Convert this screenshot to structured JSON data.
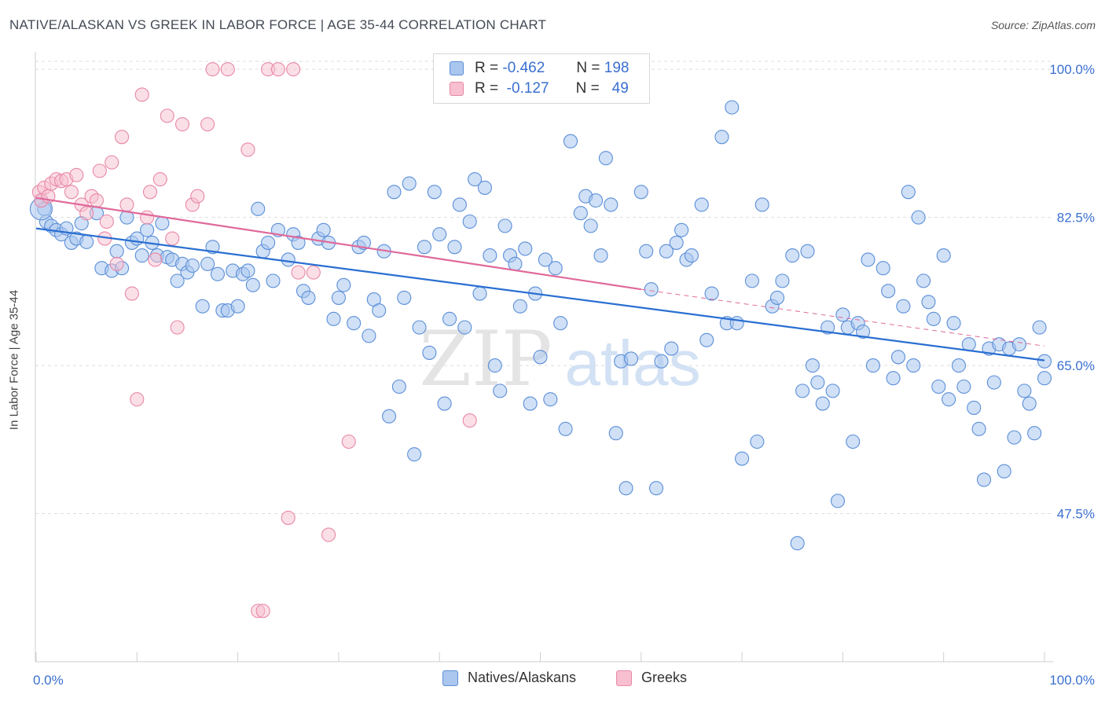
{
  "title": "NATIVE/ALASKAN VS GREEK IN LABOR FORCE | AGE 35-44 CORRELATION CHART",
  "source": "Source: ZipAtlas.com",
  "watermark": {
    "zip": "ZIP",
    "atlas": "atlas"
  },
  "colors": {
    "blue_fill": "#aac6ee",
    "blue_stroke": "#5b8fd8",
    "blue_line": "#2a6fd1",
    "pink_fill": "#f7bfd0",
    "pink_stroke": "#e888a7",
    "pink_line": "#e0699a",
    "axis_text": "#3a6fd0",
    "grid": "#dddddd"
  },
  "legend": {
    "r_label": "R =",
    "n_label": "N =",
    "series": [
      {
        "name": "Natives/Alaskans",
        "r": "-0.462",
        "n": "198"
      },
      {
        "name": "Greeks",
        "r": "-0.127",
        "n": "49"
      }
    ]
  },
  "chart_data": {
    "type": "scatter",
    "title": "NATIVE/ALASKAN VS GREEK IN LABOR FORCE | AGE 35-44 CORRELATION CHART",
    "xlabel": "",
    "ylabel": "In Labor Force | Age 35-44",
    "xlim": [
      0,
      100
    ],
    "ylim": [
      30,
      101.5
    ],
    "x_tick_labels": [
      "0.0%",
      "100.0%"
    ],
    "y_ticks": [
      47.5,
      65.0,
      82.5,
      100.0
    ],
    "y_tick_labels": [
      "47.5%",
      "65.0%",
      "82.5%",
      "100.0%"
    ],
    "grid": true,
    "legend_position": "top-center",
    "series": [
      {
        "name": "Natives/Alaskans",
        "trend": {
          "x0": 0,
          "y0": 81.2,
          "x1": 100,
          "y1": 65.6
        },
        "points": [
          [
            0.5,
            84.5
          ],
          [
            0.8,
            83.5
          ],
          [
            1.0,
            82.0
          ],
          [
            1.5,
            81.5
          ],
          [
            2.0,
            81.0
          ],
          [
            2.5,
            80.5
          ],
          [
            3.0,
            81.2
          ],
          [
            3.5,
            79.5
          ],
          [
            4.0,
            80.0
          ],
          [
            4.5,
            81.8
          ],
          [
            5.0,
            79.6
          ],
          [
            6.0,
            83.0
          ],
          [
            6.5,
            76.5
          ],
          [
            7.5,
            76.2
          ],
          [
            8.0,
            78.5
          ],
          [
            8.5,
            76.5
          ],
          [
            9.0,
            82.5
          ],
          [
            9.5,
            79.5
          ],
          [
            10.0,
            80.0
          ],
          [
            10.5,
            78.0
          ],
          [
            11.0,
            81.0
          ],
          [
            11.5,
            79.5
          ],
          [
            12.0,
            78.0
          ],
          [
            12.5,
            81.8
          ],
          [
            13.0,
            77.8
          ],
          [
            13.5,
            77.5
          ],
          [
            14.0,
            75.0
          ],
          [
            14.5,
            77.0
          ],
          [
            15.0,
            76.0
          ],
          [
            15.5,
            76.8
          ],
          [
            16.5,
            72.0
          ],
          [
            17.0,
            77.0
          ],
          [
            17.5,
            79.0
          ],
          [
            18.0,
            75.8
          ],
          [
            18.5,
            71.5
          ],
          [
            19.0,
            71.5
          ],
          [
            19.5,
            76.2
          ],
          [
            20.0,
            72.0
          ],
          [
            20.5,
            75.8
          ],
          [
            21.0,
            76.2
          ],
          [
            21.5,
            74.5
          ],
          [
            22.0,
            83.5
          ],
          [
            22.5,
            78.5
          ],
          [
            23.0,
            79.5
          ],
          [
            23.5,
            75.0
          ],
          [
            24.0,
            81.0
          ],
          [
            25.0,
            77.5
          ],
          [
            25.5,
            80.5
          ],
          [
            26.0,
            79.5
          ],
          [
            26.5,
            73.8
          ],
          [
            27.0,
            73.0
          ],
          [
            28.0,
            80.0
          ],
          [
            28.5,
            81.0
          ],
          [
            29.0,
            79.5
          ],
          [
            29.5,
            70.5
          ],
          [
            30.0,
            73.0
          ],
          [
            30.5,
            74.5
          ],
          [
            31.5,
            70.0
          ],
          [
            32.0,
            79.0
          ],
          [
            32.5,
            79.5
          ],
          [
            33.0,
            68.5
          ],
          [
            33.5,
            72.8
          ],
          [
            34.0,
            71.5
          ],
          [
            34.5,
            78.5
          ],
          [
            35.0,
            59.0
          ],
          [
            35.5,
            85.5
          ],
          [
            36.0,
            62.5
          ],
          [
            36.5,
            73.0
          ],
          [
            37.0,
            86.5
          ],
          [
            37.5,
            54.5
          ],
          [
            38.0,
            69.5
          ],
          [
            38.5,
            79.0
          ],
          [
            39.0,
            66.5
          ],
          [
            39.5,
            85.5
          ],
          [
            40.0,
            80.5
          ],
          [
            40.5,
            60.5
          ],
          [
            41.0,
            70.5
          ],
          [
            41.5,
            79.0
          ],
          [
            42.0,
            84.0
          ],
          [
            42.5,
            69.5
          ],
          [
            43.0,
            82.0
          ],
          [
            43.5,
            87.0
          ],
          [
            44.0,
            73.5
          ],
          [
            44.5,
            86.0
          ],
          [
            45.0,
            78.0
          ],
          [
            45.5,
            65.0
          ],
          [
            46.0,
            62.0
          ],
          [
            46.5,
            81.5
          ],
          [
            47.0,
            78.0
          ],
          [
            47.5,
            77.0
          ],
          [
            48.0,
            72.0
          ],
          [
            48.5,
            78.8
          ],
          [
            49.0,
            60.5
          ],
          [
            49.5,
            73.5
          ],
          [
            50.0,
            66.0
          ],
          [
            50.5,
            77.5
          ],
          [
            51.0,
            61.0
          ],
          [
            51.5,
            76.5
          ],
          [
            52.0,
            70.0
          ],
          [
            52.5,
            57.5
          ],
          [
            53.0,
            91.5
          ],
          [
            54.0,
            83.0
          ],
          [
            54.5,
            85.0
          ],
          [
            55.0,
            81.5
          ],
          [
            55.5,
            84.5
          ],
          [
            56.0,
            78.0
          ],
          [
            56.5,
            89.5
          ],
          [
            57.0,
            84.0
          ],
          [
            57.5,
            57.0
          ],
          [
            58.0,
            65.5
          ],
          [
            58.5,
            50.5
          ],
          [
            59.0,
            65.8
          ],
          [
            60.0,
            85.5
          ],
          [
            60.5,
            78.5
          ],
          [
            61.0,
            74.0
          ],
          [
            61.5,
            50.5
          ],
          [
            62.0,
            65.5
          ],
          [
            62.5,
            78.5
          ],
          [
            63.0,
            67.0
          ],
          [
            63.5,
            79.5
          ],
          [
            64.0,
            81.0
          ],
          [
            64.5,
            77.5
          ],
          [
            65.0,
            78.0
          ],
          [
            66.0,
            84.0
          ],
          [
            66.5,
            68.0
          ],
          [
            67.0,
            73.5
          ],
          [
            68.0,
            92.0
          ],
          [
            68.5,
            70.0
          ],
          [
            69.0,
            95.5
          ],
          [
            69.5,
            70.0
          ],
          [
            70.0,
            54.0
          ],
          [
            71.0,
            75.0
          ],
          [
            71.5,
            56.0
          ],
          [
            72.0,
            84.0
          ],
          [
            73.0,
            72.0
          ],
          [
            73.5,
            73.0
          ],
          [
            74.0,
            75.0
          ],
          [
            75.0,
            78.0
          ],
          [
            75.5,
            44.0
          ],
          [
            76.0,
            62.0
          ],
          [
            76.5,
            78.5
          ],
          [
            77.0,
            65.0
          ],
          [
            77.5,
            63.0
          ],
          [
            78.0,
            60.5
          ],
          [
            78.5,
            69.5
          ],
          [
            79.0,
            62.0
          ],
          [
            79.5,
            49.0
          ],
          [
            80.0,
            71.0
          ],
          [
            80.5,
            69.5
          ],
          [
            81.0,
            56.0
          ],
          [
            81.5,
            70.0
          ],
          [
            82.0,
            69.0
          ],
          [
            82.5,
            77.5
          ],
          [
            83.0,
            65.0
          ],
          [
            84.0,
            76.5
          ],
          [
            84.5,
            73.8
          ],
          [
            85.0,
            63.5
          ],
          [
            85.5,
            66.0
          ],
          [
            86.0,
            72.0
          ],
          [
            86.5,
            85.5
          ],
          [
            87.0,
            65.0
          ],
          [
            87.5,
            82.5
          ],
          [
            88.0,
            75.0
          ],
          [
            88.5,
            72.5
          ],
          [
            89.0,
            70.5
          ],
          [
            89.5,
            62.5
          ],
          [
            90.0,
            78.0
          ],
          [
            90.5,
            61.0
          ],
          [
            91.0,
            70.0
          ],
          [
            91.5,
            65.0
          ],
          [
            92.0,
            62.5
          ],
          [
            92.5,
            67.5
          ],
          [
            93.0,
            60.0
          ],
          [
            93.5,
            57.5
          ],
          [
            94.0,
            51.5
          ],
          [
            94.5,
            67.0
          ],
          [
            95.0,
            63.0
          ],
          [
            95.5,
            67.5
          ],
          [
            96.0,
            52.5
          ],
          [
            96.5,
            67.0
          ],
          [
            97.0,
            56.5
          ],
          [
            97.5,
            67.5
          ],
          [
            98.0,
            62.0
          ],
          [
            98.5,
            60.5
          ],
          [
            99.0,
            57.0
          ],
          [
            99.5,
            69.5
          ],
          [
            100.0,
            63.5
          ],
          [
            100.0,
            65.5
          ],
          [
            60.0,
            100.0
          ],
          [
            59.5,
            100.0
          ]
        ]
      },
      {
        "name": "Greeks",
        "trend": {
          "x0": 0,
          "y0": 84.8,
          "x1": 60,
          "y1": 74.0
        },
        "trend_dashed": {
          "x0": 60,
          "y0": 74.0,
          "x1": 100,
          "y1": 67.3
        },
        "points": [
          [
            0.3,
            85.5
          ],
          [
            0.5,
            84.5
          ],
          [
            0.8,
            86.0
          ],
          [
            1.2,
            85.0
          ],
          [
            1.5,
            86.5
          ],
          [
            2.0,
            87.0
          ],
          [
            2.5,
            86.8
          ],
          [
            3.0,
            87.0
          ],
          [
            3.5,
            85.5
          ],
          [
            4.0,
            87.5
          ],
          [
            4.5,
            84.0
          ],
          [
            5.0,
            83.0
          ],
          [
            5.5,
            85.0
          ],
          [
            6.0,
            84.5
          ],
          [
            6.3,
            88.0
          ],
          [
            6.8,
            80.0
          ],
          [
            7.0,
            82.0
          ],
          [
            7.5,
            89.0
          ],
          [
            8.0,
            77.0
          ],
          [
            8.5,
            92.0
          ],
          [
            9.0,
            84.0
          ],
          [
            9.5,
            73.5
          ],
          [
            10.0,
            61.0
          ],
          [
            10.5,
            97.0
          ],
          [
            11.0,
            82.5
          ],
          [
            11.3,
            85.5
          ],
          [
            11.8,
            77.5
          ],
          [
            12.3,
            87.0
          ],
          [
            13.0,
            94.5
          ],
          [
            13.5,
            80.0
          ],
          [
            14.0,
            69.5
          ],
          [
            14.5,
            93.5
          ],
          [
            15.5,
            84.0
          ],
          [
            16.0,
            85.0
          ],
          [
            17.0,
            93.5
          ],
          [
            17.5,
            100.0
          ],
          [
            19.0,
            100.0
          ],
          [
            21.0,
            90.5
          ],
          [
            22.0,
            36.0
          ],
          [
            22.5,
            36.0
          ],
          [
            23.0,
            100.0
          ],
          [
            24.0,
            100.0
          ],
          [
            25.0,
            47.0
          ],
          [
            25.5,
            100.0
          ],
          [
            26.0,
            76.0
          ],
          [
            27.5,
            76.0
          ],
          [
            29.0,
            45.0
          ],
          [
            31.0,
            56.0
          ],
          [
            43.0,
            58.5
          ]
        ]
      }
    ]
  }
}
